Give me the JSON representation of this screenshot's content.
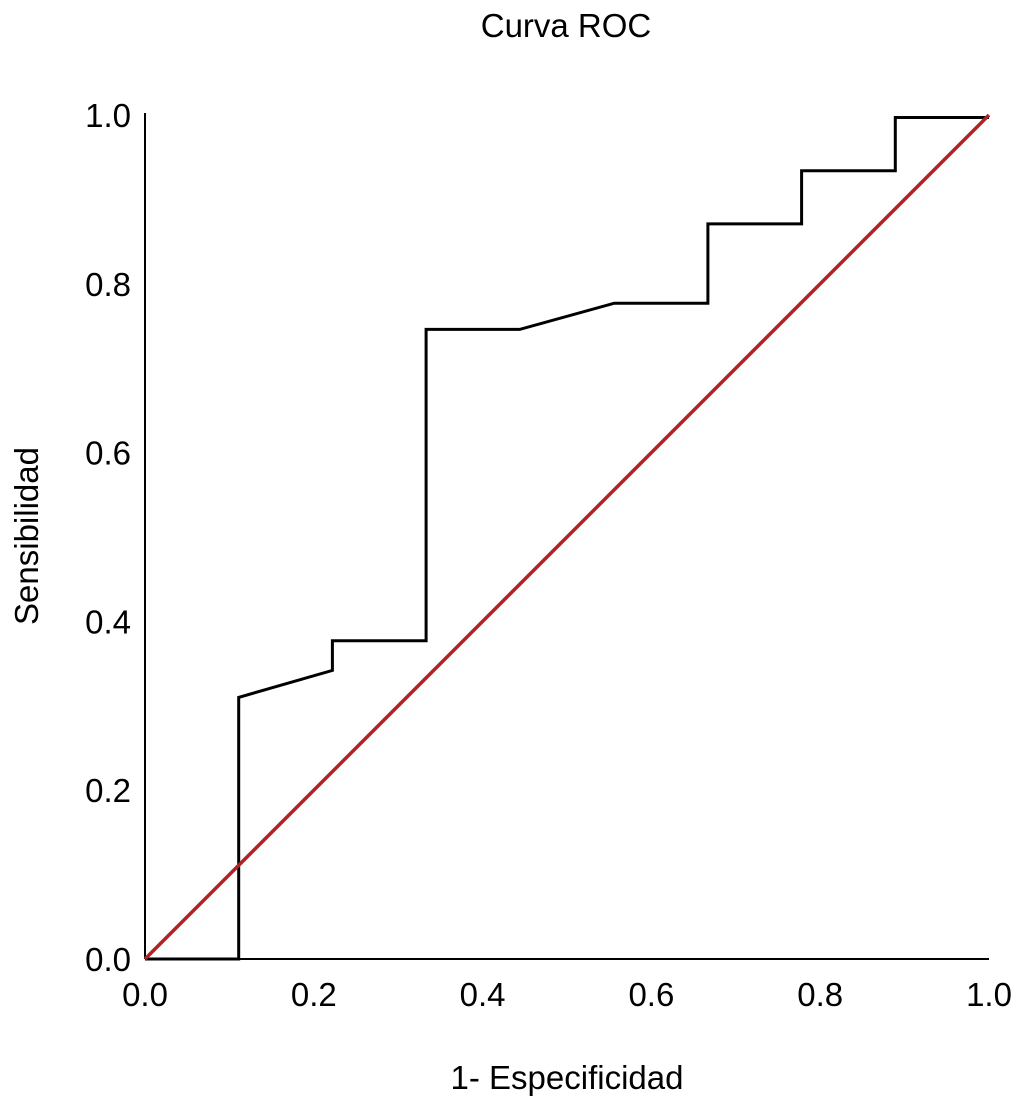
{
  "chart_data": {
    "type": "line",
    "title": "Curva ROC",
    "xlabel": "1- Especificidad",
    "ylabel": "Sensibilidad",
    "xlim": [
      0.0,
      1.0
    ],
    "ylim": [
      0.0,
      1.0
    ],
    "x_ticks": [
      "0.0",
      "0.2",
      "0.4",
      "0.6",
      "0.8",
      "1.0"
    ],
    "y_ticks": [
      "0.0",
      "0.2",
      "0.4",
      "0.6",
      "0.8",
      "1.0"
    ],
    "grid": false,
    "legend": "none",
    "series": [
      {
        "color": "#000000",
        "x": [
          0.0,
          0.111,
          0.111,
          0.222,
          0.222,
          0.333,
          0.333,
          0.444,
          0.556,
          0.667,
          0.667,
          0.778,
          0.778,
          0.889,
          0.889,
          1.0
        ],
        "y": [
          0.0,
          0.0,
          0.31,
          0.342,
          0.377,
          0.377,
          0.746,
          0.746,
          0.777,
          0.777,
          0.871,
          0.871,
          0.934,
          0.934,
          0.997,
          0.997
        ]
      },
      {
        "color": "#b22222",
        "x": [
          0.0,
          1.0
        ],
        "y": [
          0.0,
          1.0
        ]
      }
    ]
  }
}
